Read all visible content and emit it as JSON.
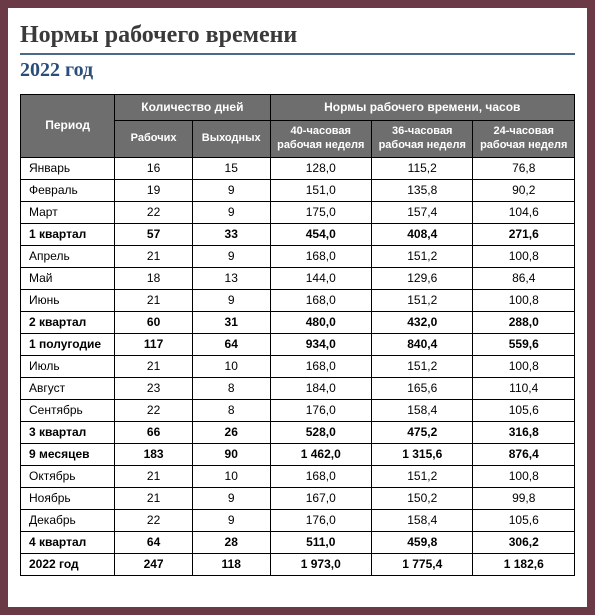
{
  "title": "Нормы рабочего времени",
  "subtitle": "2022 год",
  "headers": {
    "period": "Период",
    "days_group": "Количество дней",
    "norms_group": "Нормы рабочего времени, часов",
    "work_days": "Рабочих",
    "weekend_days": "Выходных",
    "week40": "40-часовая рабочая неделя",
    "week36": "36-часовая рабочая неделя",
    "week24": "24-часовая рабочая неделя"
  },
  "rows": [
    {
      "period": "Январь",
      "work": "16",
      "off": "15",
      "h40": "128,0",
      "h36": "115,2",
      "h24": "76,8",
      "bold": false
    },
    {
      "period": "Февраль",
      "work": "19",
      "off": "9",
      "h40": "151,0",
      "h36": "135,8",
      "h24": "90,2",
      "bold": false
    },
    {
      "period": "Март",
      "work": "22",
      "off": "9",
      "h40": "175,0",
      "h36": "157,4",
      "h24": "104,6",
      "bold": false
    },
    {
      "period": "1 квартал",
      "work": "57",
      "off": "33",
      "h40": "454,0",
      "h36": "408,4",
      "h24": "271,6",
      "bold": true
    },
    {
      "period": "Апрель",
      "work": "21",
      "off": "9",
      "h40": "168,0",
      "h36": "151,2",
      "h24": "100,8",
      "bold": false
    },
    {
      "period": "Май",
      "work": "18",
      "off": "13",
      "h40": "144,0",
      "h36": "129,6",
      "h24": "86,4",
      "bold": false
    },
    {
      "period": "Июнь",
      "work": "21",
      "off": "9",
      "h40": "168,0",
      "h36": "151,2",
      "h24": "100,8",
      "bold": false
    },
    {
      "period": "2 квартал",
      "work": "60",
      "off": "31",
      "h40": "480,0",
      "h36": "432,0",
      "h24": "288,0",
      "bold": true
    },
    {
      "period": "1 полугодие",
      "work": "117",
      "off": "64",
      "h40": "934,0",
      "h36": "840,4",
      "h24": "559,6",
      "bold": true
    },
    {
      "period": "Июль",
      "work": "21",
      "off": "10",
      "h40": "168,0",
      "h36": "151,2",
      "h24": "100,8",
      "bold": false
    },
    {
      "period": "Август",
      "work": "23",
      "off": "8",
      "h40": "184,0",
      "h36": "165,6",
      "h24": "110,4",
      "bold": false
    },
    {
      "period": "Сентябрь",
      "work": "22",
      "off": "8",
      "h40": "176,0",
      "h36": "158,4",
      "h24": "105,6",
      "bold": false
    },
    {
      "period": "3 квартал",
      "work": "66",
      "off": "26",
      "h40": "528,0",
      "h36": "475,2",
      "h24": "316,8",
      "bold": true
    },
    {
      "period": "9 месяцев",
      "work": "183",
      "off": "90",
      "h40": "1 462,0",
      "h36": "1 315,6",
      "h24": "876,4",
      "bold": true
    },
    {
      "period": "Октябрь",
      "work": "21",
      "off": "10",
      "h40": "168,0",
      "h36": "151,2",
      "h24": "100,8",
      "bold": false
    },
    {
      "period": "Ноябрь",
      "work": "21",
      "off": "9",
      "h40": "167,0",
      "h36": "150,2",
      "h24": "99,8",
      "bold": false
    },
    {
      "period": "Декабрь",
      "work": "22",
      "off": "9",
      "h40": "176,0",
      "h36": "158,4",
      "h24": "105,6",
      "bold": false
    },
    {
      "period": "4 квартал",
      "work": "64",
      "off": "28",
      "h40": "511,0",
      "h36": "459,8",
      "h24": "306,2",
      "bold": true
    },
    {
      "period": "2022 год",
      "work": "247",
      "off": "118",
      "h40": "1 973,0",
      "h36": "1 775,4",
      "h24": "1 182,6",
      "bold": true
    }
  ],
  "style": {
    "frame_border_color": "#6b3a47",
    "header_bg": "#6e6e6e",
    "header_fg": "#ffffff",
    "title_underline": "#4a6a8a",
    "subtitle_color": "#2a4d7a",
    "cell_border": "#000000",
    "body_font_size_pt": 12
  }
}
